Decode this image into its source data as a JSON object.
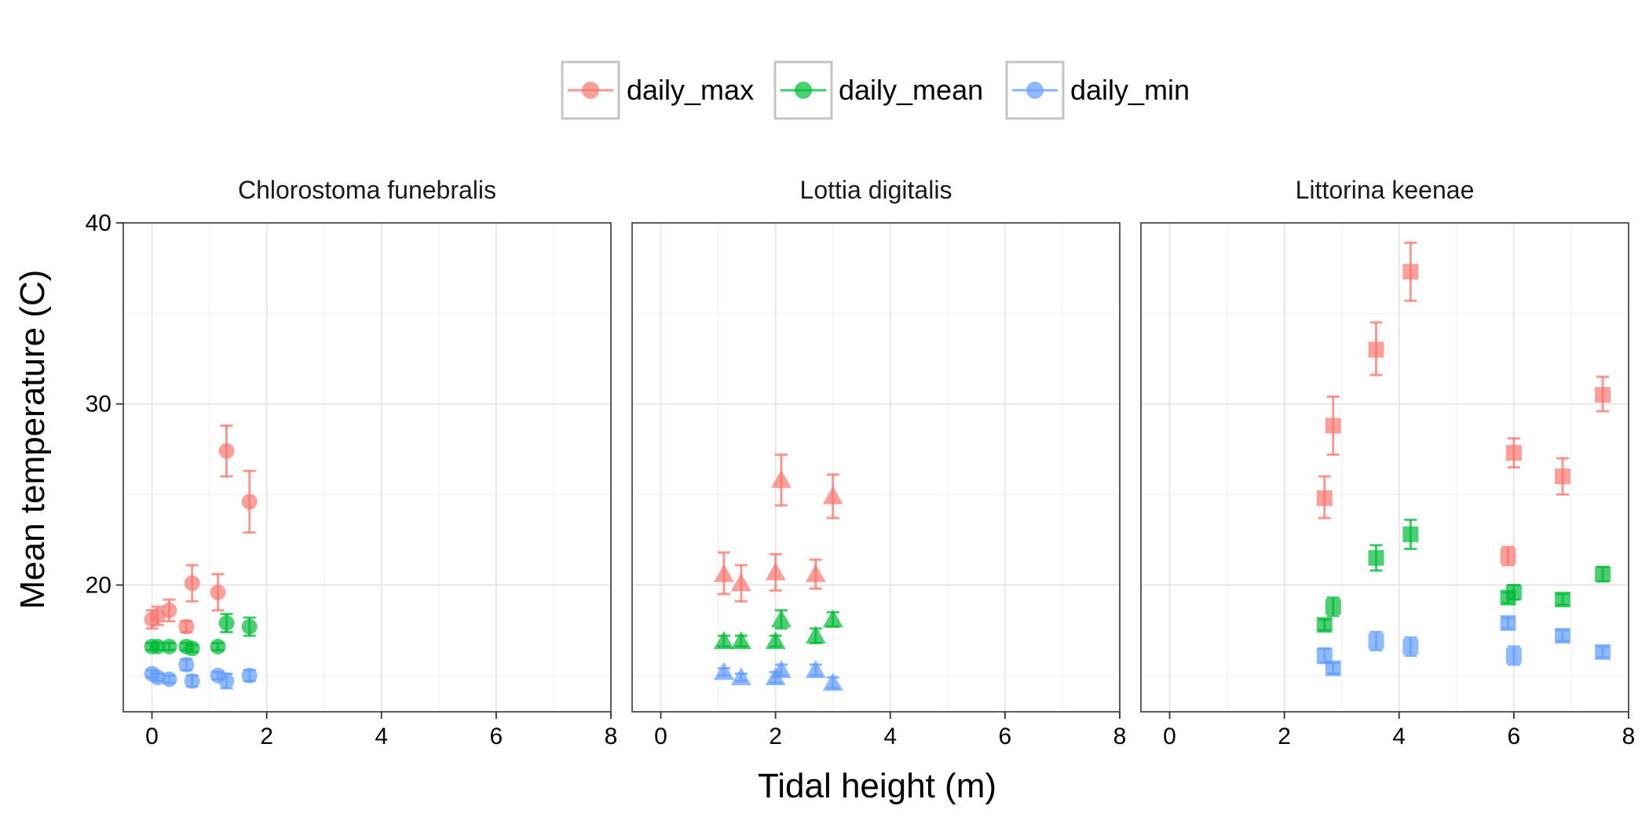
{
  "chart_data": {
    "type": "scatter",
    "xlabel": "Tidal height (m)",
    "ylabel": "Mean temperature (C)",
    "xlim": [
      -0.5,
      8
    ],
    "ylim": [
      13,
      40
    ],
    "x_ticks": [
      "0",
      "2",
      "4",
      "6",
      "8"
    ],
    "y_ticks": [
      "20",
      "30",
      "40"
    ],
    "grid": true,
    "legend": {
      "placement": "top",
      "entries": [
        {
          "label": "daily_max",
          "color": "#F8766D"
        },
        {
          "label": "daily_mean",
          "color": "#00BA38"
        },
        {
          "label": "daily_min",
          "color": "#619CFF"
        }
      ]
    },
    "panels": [
      {
        "title": "Chlorostoma funebralis",
        "shape": "circle",
        "series": [
          {
            "name": "daily_max",
            "color": "#F8766D",
            "points": [
              {
                "x": 0.0,
                "y": 18.1,
                "lo": 17.6,
                "hi": 18.6
              },
              {
                "x": 0.1,
                "y": 18.3,
                "lo": 17.8,
                "hi": 18.8
              },
              {
                "x": 0.3,
                "y": 18.6,
                "lo": 18.0,
                "hi": 19.2
              },
              {
                "x": 0.6,
                "y": 17.7,
                "lo": 17.4,
                "hi": 18.0
              },
              {
                "x": 0.7,
                "y": 20.1,
                "lo": 19.1,
                "hi": 21.1
              },
              {
                "x": 1.15,
                "y": 19.6,
                "lo": 18.6,
                "hi": 20.6
              },
              {
                "x": 1.3,
                "y": 27.4,
                "lo": 26.0,
                "hi": 28.8
              },
              {
                "x": 1.7,
                "y": 24.6,
                "lo": 22.9,
                "hi": 26.3
              }
            ]
          },
          {
            "name": "daily_mean",
            "color": "#00BA38",
            "points": [
              {
                "x": 0.0,
                "y": 16.6,
                "lo": 16.4,
                "hi": 16.8
              },
              {
                "x": 0.1,
                "y": 16.6,
                "lo": 16.4,
                "hi": 16.8
              },
              {
                "x": 0.3,
                "y": 16.6,
                "lo": 16.4,
                "hi": 16.8
              },
              {
                "x": 0.6,
                "y": 16.6,
                "lo": 16.4,
                "hi": 16.8
              },
              {
                "x": 0.7,
                "y": 16.5,
                "lo": 16.3,
                "hi": 16.7
              },
              {
                "x": 1.15,
                "y": 16.6,
                "lo": 16.4,
                "hi": 16.8
              },
              {
                "x": 1.3,
                "y": 17.9,
                "lo": 17.4,
                "hi": 18.4
              },
              {
                "x": 1.7,
                "y": 17.7,
                "lo": 17.2,
                "hi": 18.2
              }
            ]
          },
          {
            "name": "daily_min",
            "color": "#619CFF",
            "points": [
              {
                "x": 0.0,
                "y": 15.1,
                "lo": 14.9,
                "hi": 15.3
              },
              {
                "x": 0.1,
                "y": 14.9,
                "lo": 14.7,
                "hi": 15.1
              },
              {
                "x": 0.3,
                "y": 14.8,
                "lo": 14.6,
                "hi": 15.0
              },
              {
                "x": 0.6,
                "y": 15.6,
                "lo": 15.3,
                "hi": 15.9
              },
              {
                "x": 0.7,
                "y": 14.7,
                "lo": 14.4,
                "hi": 15.0
              },
              {
                "x": 1.15,
                "y": 15.0,
                "lo": 14.8,
                "hi": 15.2
              },
              {
                "x": 1.3,
                "y": 14.7,
                "lo": 14.3,
                "hi": 15.1
              },
              {
                "x": 1.7,
                "y": 15.0,
                "lo": 14.7,
                "hi": 15.3
              }
            ]
          }
        ]
      },
      {
        "title": "Lottia digitalis",
        "shape": "triangle",
        "series": [
          {
            "name": "daily_max",
            "color": "#F8766D",
            "points": [
              {
                "x": 1.1,
                "y": 20.6,
                "lo": 19.5,
                "hi": 21.8
              },
              {
                "x": 1.4,
                "y": 20.1,
                "lo": 19.1,
                "hi": 21.1
              },
              {
                "x": 2.0,
                "y": 20.7,
                "lo": 19.7,
                "hi": 21.7
              },
              {
                "x": 2.1,
                "y": 25.8,
                "lo": 24.4,
                "hi": 27.2
              },
              {
                "x": 2.7,
                "y": 20.6,
                "lo": 19.8,
                "hi": 21.4
              },
              {
                "x": 3.0,
                "y": 24.9,
                "lo": 23.7,
                "hi": 26.1
              }
            ]
          },
          {
            "name": "daily_mean",
            "color": "#00BA38",
            "points": [
              {
                "x": 1.1,
                "y": 16.9,
                "lo": 16.6,
                "hi": 17.2
              },
              {
                "x": 1.4,
                "y": 16.9,
                "lo": 16.6,
                "hi": 17.2
              },
              {
                "x": 2.0,
                "y": 16.9,
                "lo": 16.6,
                "hi": 17.2
              },
              {
                "x": 2.1,
                "y": 18.1,
                "lo": 17.6,
                "hi": 18.6
              },
              {
                "x": 2.7,
                "y": 17.2,
                "lo": 16.8,
                "hi": 17.6
              },
              {
                "x": 3.0,
                "y": 18.1,
                "lo": 17.7,
                "hi": 18.5
              }
            ]
          },
          {
            "name": "daily_min",
            "color": "#619CFF",
            "points": [
              {
                "x": 1.1,
                "y": 15.2,
                "lo": 15.0,
                "hi": 15.4
              },
              {
                "x": 1.4,
                "y": 14.9,
                "lo": 14.7,
                "hi": 15.1
              },
              {
                "x": 2.0,
                "y": 14.9,
                "lo": 14.6,
                "hi": 15.2
              },
              {
                "x": 2.1,
                "y": 15.3,
                "lo": 15.0,
                "hi": 15.6
              },
              {
                "x": 2.7,
                "y": 15.3,
                "lo": 15.0,
                "hi": 15.6
              },
              {
                "x": 3.0,
                "y": 14.6,
                "lo": 14.3,
                "hi": 14.9
              }
            ]
          }
        ]
      },
      {
        "title": "Littorina keenae",
        "shape": "square",
        "series": [
          {
            "name": "daily_max",
            "color": "#F8766D",
            "points": [
              {
                "x": 2.7,
                "y": 24.8,
                "lo": 23.7,
                "hi": 26.0
              },
              {
                "x": 2.85,
                "y": 28.8,
                "lo": 27.2,
                "hi": 30.4
              },
              {
                "x": 3.6,
                "y": 33.0,
                "lo": 31.6,
                "hi": 34.5
              },
              {
                "x": 4.2,
                "y": 37.3,
                "lo": 35.7,
                "hi": 38.9
              },
              {
                "x": 5.9,
                "y": 21.6,
                "lo": 21.1,
                "hi": 22.1
              },
              {
                "x": 6.0,
                "y": 27.3,
                "lo": 26.5,
                "hi": 28.1
              },
              {
                "x": 6.85,
                "y": 26.0,
                "lo": 25.0,
                "hi": 27.0
              },
              {
                "x": 7.55,
                "y": 30.5,
                "lo": 29.6,
                "hi": 31.5
              }
            ]
          },
          {
            "name": "daily_mean",
            "color": "#00BA38",
            "points": [
              {
                "x": 2.7,
                "y": 17.8,
                "lo": 17.5,
                "hi": 18.1
              },
              {
                "x": 2.85,
                "y": 18.8,
                "lo": 18.3,
                "hi": 19.3
              },
              {
                "x": 3.6,
                "y": 21.5,
                "lo": 20.8,
                "hi": 22.2
              },
              {
                "x": 4.2,
                "y": 22.8,
                "lo": 22.0,
                "hi": 23.6
              },
              {
                "x": 5.9,
                "y": 19.3,
                "lo": 19.0,
                "hi": 19.6
              },
              {
                "x": 6.0,
                "y": 19.6,
                "lo": 19.2,
                "hi": 20.0
              },
              {
                "x": 6.85,
                "y": 19.2,
                "lo": 18.9,
                "hi": 19.5
              },
              {
                "x": 7.55,
                "y": 20.6,
                "lo": 20.2,
                "hi": 21.0
              }
            ]
          },
          {
            "name": "daily_min",
            "color": "#619CFF",
            "points": [
              {
                "x": 2.7,
                "y": 16.1,
                "lo": 15.7,
                "hi": 16.5
              },
              {
                "x": 2.85,
                "y": 15.4,
                "lo": 15.1,
                "hi": 15.7
              },
              {
                "x": 3.6,
                "y": 16.9,
                "lo": 16.4,
                "hi": 17.4
              },
              {
                "x": 4.2,
                "y": 16.6,
                "lo": 16.1,
                "hi": 17.1
              },
              {
                "x": 5.9,
                "y": 17.9,
                "lo": 17.6,
                "hi": 18.2
              },
              {
                "x": 6.0,
                "y": 16.1,
                "lo": 15.6,
                "hi": 16.6
              },
              {
                "x": 6.85,
                "y": 17.2,
                "lo": 16.9,
                "hi": 17.5
              },
              {
                "x": 7.55,
                "y": 16.3,
                "lo": 16.0,
                "hi": 16.6
              }
            ]
          }
        ]
      }
    ]
  }
}
